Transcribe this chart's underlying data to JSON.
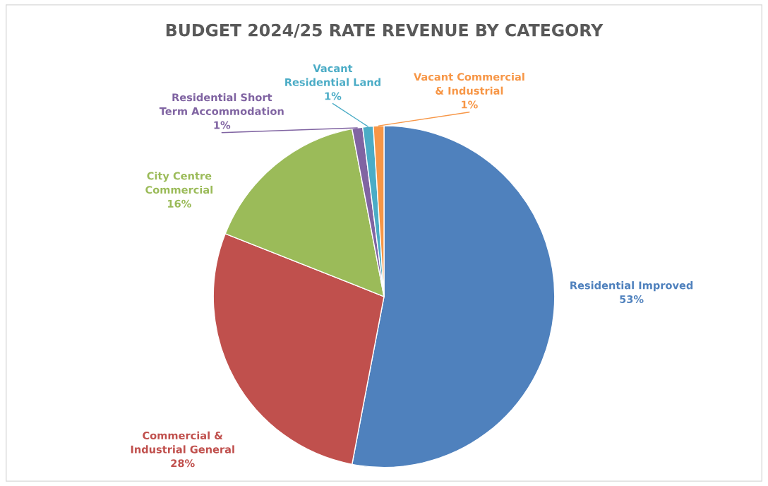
{
  "chart_data": {
    "type": "pie",
    "title": "BUDGET 2024/25 RATE REVENUE BY CATEGORY",
    "categories": [
      "Residential Improved",
      "Commercial & Industrial General",
      "City Centre Commercial",
      "Residential Short Term Accommodation",
      "Vacant Residential Land",
      "Vacant Commercial & Industrial"
    ],
    "values": [
      53,
      28,
      16,
      1,
      1,
      1
    ],
    "colors": [
      "#4f81bd",
      "#c0504d",
      "#9bbb59",
      "#8064a2",
      "#4bacc6",
      "#f79646"
    ],
    "value_labels": [
      "53%",
      "28%",
      "16%",
      "1%",
      "1%",
      "1%"
    ],
    "legend": false
  }
}
